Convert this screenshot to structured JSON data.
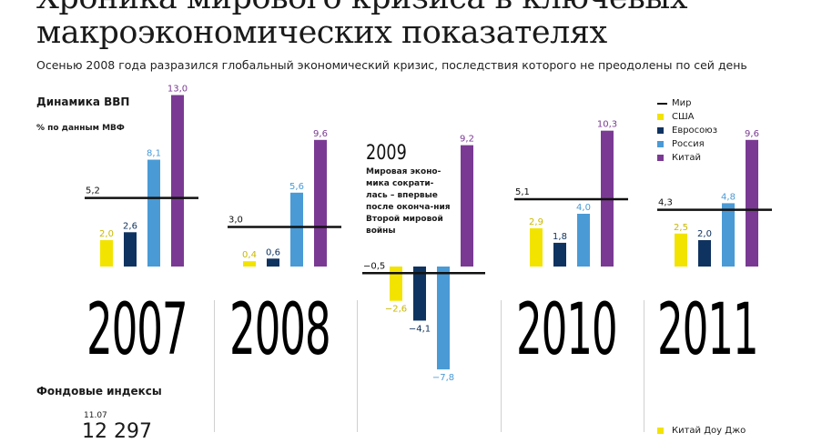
{
  "header": {
    "title_line1": "Хроника мирового кризиса в ключевых",
    "title_line2": "макроэкономических показателях",
    "subtitle": "Осенью 2008 года разразился глобальный экономический кризис, последствия которого не преодолены по сей день"
  },
  "gdp_section": {
    "label": "Динамика ВВП",
    "note": "% по данным МВФ",
    "annotation_year": "2009",
    "annotation_text": "Мировая эконо-мика сократи-лась – впервые после оконча-ния Второй мировой войны"
  },
  "legend": [
    {
      "name": "Мир",
      "color": "#111111",
      "marker": "line"
    },
    {
      "name": "США",
      "color": "#f2e300",
      "marker": "square"
    },
    {
      "name": "Евросоюз",
      "color": "#0f3360",
      "marker": "square"
    },
    {
      "name": "Россия",
      "color": "#4a9ad6",
      "marker": "square"
    },
    {
      "name": "Китай",
      "color": "#7a3a93",
      "marker": "square"
    }
  ],
  "chart_data": {
    "type": "bar",
    "categories": [
      "2007",
      "2008",
      "2009",
      "2010",
      "2011"
    ],
    "series": [
      {
        "name": "США",
        "values": [
          2.0,
          0.4,
          -2.6,
          2.9,
          2.5
        ],
        "labels": [
          "2,0",
          "0,4",
          "−2,6",
          "2,9",
          "2,5"
        ]
      },
      {
        "name": "Евросоюз",
        "values": [
          2.6,
          0.6,
          -4.1,
          1.8,
          2.0
        ],
        "labels": [
          "2,6",
          "0,6",
          "−4,1",
          "1,8",
          "2,0"
        ]
      },
      {
        "name": "Россия",
        "values": [
          8.1,
          5.6,
          -7.8,
          4.0,
          4.8
        ],
        "labels": [
          "8,1",
          "5,6",
          "−7,8",
          "4,0",
          "4,8"
        ]
      },
      {
        "name": "Китай",
        "values": [
          13.0,
          9.6,
          9.2,
          10.3,
          9.6
        ],
        "labels": [
          "13,0",
          "9,6",
          "9,2",
          "10,3",
          "9,6"
        ]
      },
      {
        "name": "Мир",
        "values": [
          5.2,
          3.0,
          -0.5,
          5.1,
          4.3
        ],
        "labels": [
          "5,2",
          "3,0",
          "−0,5",
          "5,1",
          "4,3"
        ]
      }
    ],
    "title": "Динамика ВВП",
    "ylabel": "% по данным МВФ"
  },
  "years_display": [
    "2007",
    "2008",
    "2010",
    "2011"
  ],
  "index_section": {
    "label": "Фондовые индексы",
    "date": "11.07",
    "value": "12 297"
  },
  "bottom_legend": {
    "label": "Китай Доу Джо",
    "color": "#f2e300"
  }
}
